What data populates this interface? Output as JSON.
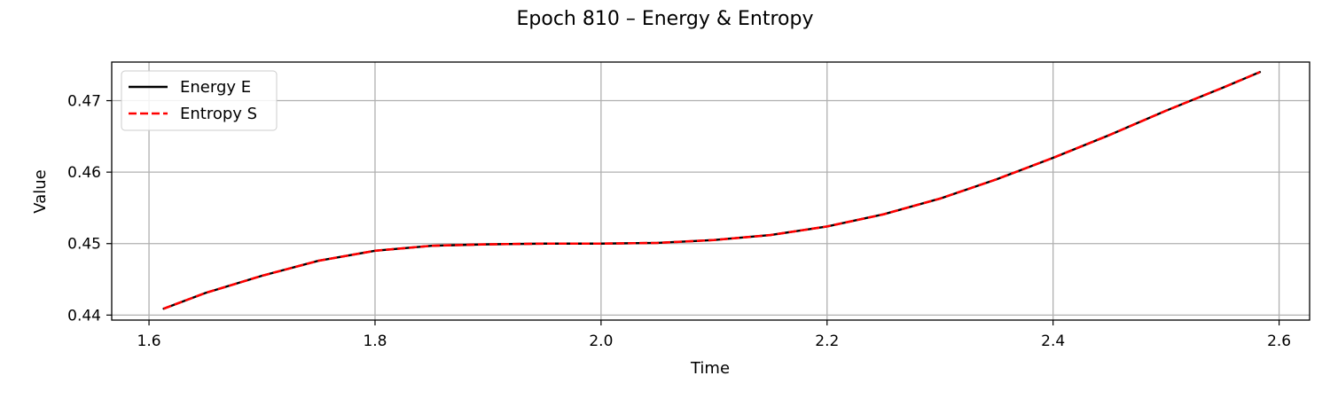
{
  "chart_data": {
    "type": "line",
    "title": "Epoch 810 – Energy & Entropy",
    "xlabel": "Time",
    "ylabel": "Value",
    "xlim": [
      1.567,
      2.627
    ],
    "ylim": [
      0.4393,
      0.4754
    ],
    "xticks": [
      1.6,
      1.8,
      2.0,
      2.2,
      2.4,
      2.6
    ],
    "xtick_labels": [
      "1.6",
      "1.8",
      "2.0",
      "2.2",
      "2.4",
      "2.6"
    ],
    "yticks": [
      0.44,
      0.45,
      0.46,
      0.47
    ],
    "ytick_labels": [
      "0.44",
      "0.45",
      "0.46",
      "0.47"
    ],
    "grid": true,
    "legend": "upper-left",
    "series": [
      {
        "name": "Energy E",
        "color": "#000000",
        "style": "solid",
        "x": [
          1.613,
          1.65,
          1.7,
          1.75,
          1.8,
          1.85,
          1.9,
          1.95,
          2.0,
          2.05,
          2.1,
          2.15,
          2.2,
          2.25,
          2.3,
          2.35,
          2.4,
          2.45,
          2.5,
          2.55,
          2.583
        ],
        "y": [
          0.4409,
          0.4431,
          0.4455,
          0.4476,
          0.449,
          0.4497,
          0.4499,
          0.45,
          0.45,
          0.4501,
          0.4505,
          0.4512,
          0.4524,
          0.4541,
          0.4563,
          0.459,
          0.462,
          0.4652,
          0.4686,
          0.4718,
          0.474
        ]
      },
      {
        "name": "Entropy S",
        "color": "#ff0000",
        "style": "dashed",
        "x": [
          1.613,
          1.65,
          1.7,
          1.75,
          1.8,
          1.85,
          1.9,
          1.95,
          2.0,
          2.05,
          2.1,
          2.15,
          2.2,
          2.25,
          2.3,
          2.35,
          2.4,
          2.45,
          2.5,
          2.55,
          2.583
        ],
        "y": [
          0.4409,
          0.4431,
          0.4455,
          0.4476,
          0.449,
          0.4497,
          0.4499,
          0.45,
          0.45,
          0.4501,
          0.4505,
          0.4512,
          0.4524,
          0.4541,
          0.4563,
          0.459,
          0.462,
          0.4652,
          0.4686,
          0.4718,
          0.474
        ]
      }
    ]
  }
}
